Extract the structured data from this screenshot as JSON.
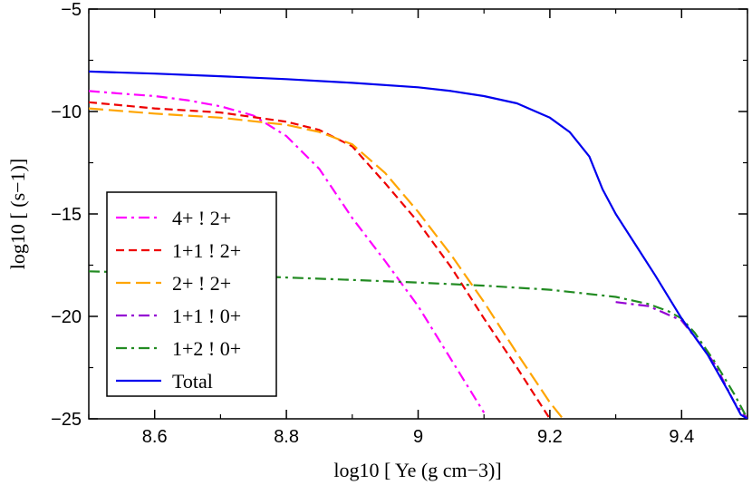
{
  "chart_data": {
    "type": "line",
    "xlabel": "log10 [ Ye (g cm−3)]",
    "ylabel": "log10 [ (s−1)]",
    "xlim": [
      8.5,
      9.5
    ],
    "ylim": [
      -25,
      -5
    ],
    "xticks": [
      8.6,
      8.8,
      9.0,
      9.2,
      9.4
    ],
    "xtick_labels": [
      "8.6",
      "8.8",
      "9",
      "9.2",
      "9.4"
    ],
    "yticks": [
      -25,
      -20,
      -15,
      -10,
      -5
    ],
    "ytick_labels": [
      "−25",
      "−20",
      "−15",
      "−10",
      "−5"
    ],
    "grid": false,
    "legend_position": "lower-left",
    "series": [
      {
        "name": "4+ ! 2+",
        "color": "#ff00ff",
        "dash": "dashdot",
        "x": [
          8.5,
          8.55,
          8.6,
          8.65,
          8.7,
          8.75,
          8.8,
          8.85,
          8.9,
          8.95,
          9.0,
          9.05,
          9.1
        ],
        "y": [
          -9.0,
          -9.13,
          -9.25,
          -9.45,
          -9.75,
          -10.2,
          -11.2,
          -12.8,
          -15.2,
          -17.3,
          -19.5,
          -22.1,
          -24.7
        ]
      },
      {
        "name": "1+1 ! 2+",
        "color": "#ee0000",
        "dash": "dashed",
        "x": [
          8.5,
          8.6,
          8.7,
          8.8,
          8.85,
          8.9,
          8.95,
          9.0,
          9.05,
          9.1,
          9.15,
          9.2
        ],
        "y": [
          -9.55,
          -9.85,
          -10.05,
          -10.5,
          -10.9,
          -11.7,
          -13.5,
          -15.4,
          -17.6,
          -20.1,
          -22.5,
          -25.0
        ]
      },
      {
        "name": "2+ ! 2+",
        "color": "#ffa500",
        "dash": "longdash",
        "x": [
          8.5,
          8.6,
          8.7,
          8.8,
          8.85,
          8.9,
          8.95,
          9.0,
          9.05,
          9.1,
          9.15,
          9.2,
          9.22
        ],
        "y": [
          -9.85,
          -10.1,
          -10.3,
          -10.65,
          -11.0,
          -11.6,
          -13.0,
          -14.9,
          -17.0,
          -19.3,
          -21.8,
          -24.2,
          -25.0
        ]
      },
      {
        "name": "1+1 ! 0+",
        "color": "#9400d3",
        "dash": "dashdot",
        "x": [
          9.3,
          9.35,
          9.4,
          9.42,
          9.45,
          9.48,
          9.5
        ],
        "y": [
          -19.3,
          -19.5,
          -20.2,
          -21.0,
          -22.3,
          -24.2,
          -25.0
        ]
      },
      {
        "name": "1+2 ! 0+",
        "color": "#228b22",
        "dash": "dashdot",
        "x": [
          8.5,
          8.6,
          8.7,
          8.8,
          8.9,
          9.0,
          9.1,
          9.2,
          9.3,
          9.35,
          9.38,
          9.4,
          9.42,
          9.45,
          9.48,
          9.5
        ],
        "y": [
          -17.8,
          -17.88,
          -17.98,
          -18.1,
          -18.22,
          -18.35,
          -18.5,
          -18.7,
          -19.05,
          -19.4,
          -19.75,
          -20.1,
          -20.8,
          -22.2,
          -23.8,
          -25.0
        ]
      },
      {
        "name": "Total",
        "color": "#0000ee",
        "dash": "solid",
        "x": [
          8.5,
          8.6,
          8.7,
          8.8,
          8.9,
          9.0,
          9.05,
          9.1,
          9.15,
          9.2,
          9.23,
          9.26,
          9.28,
          9.3,
          9.33,
          9.36,
          9.4,
          9.44,
          9.47,
          9.49,
          9.5
        ],
        "y": [
          -8.05,
          -8.15,
          -8.28,
          -8.42,
          -8.6,
          -8.82,
          -9.0,
          -9.25,
          -9.6,
          -10.3,
          -11.0,
          -12.2,
          -13.8,
          -15.0,
          -16.5,
          -18.0,
          -20.1,
          -21.9,
          -23.6,
          -24.8,
          -25.0
        ]
      }
    ]
  }
}
